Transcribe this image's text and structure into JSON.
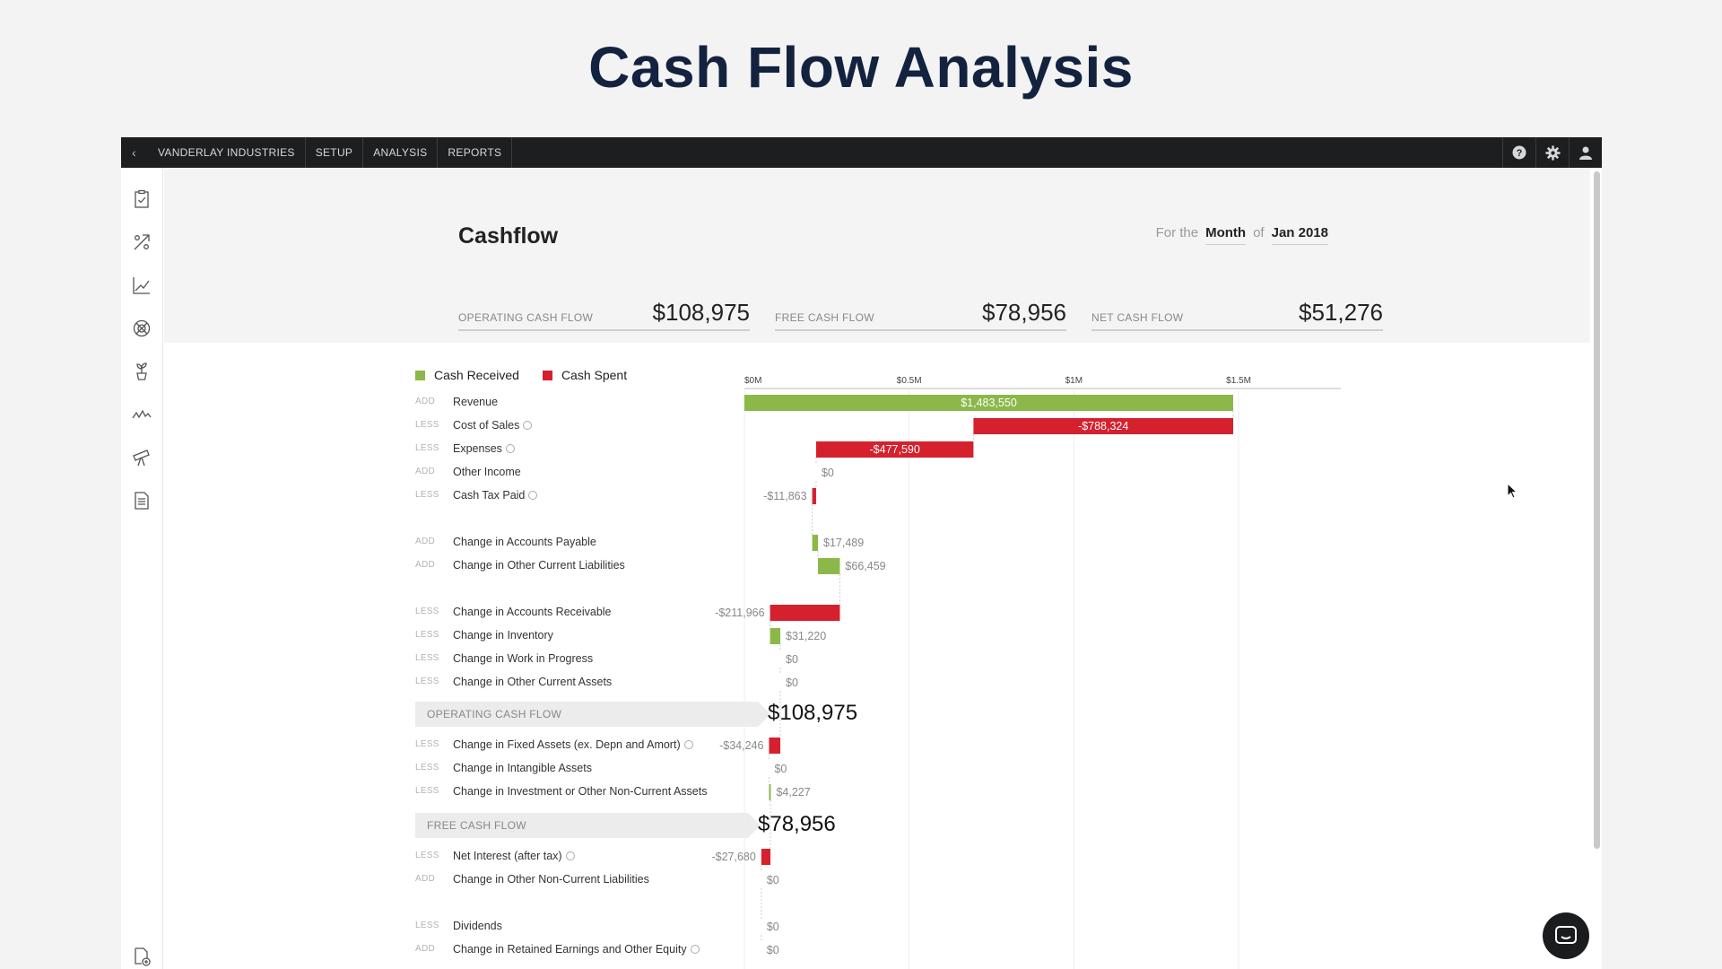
{
  "slide": {
    "title": "Cash Flow Analysis"
  },
  "topbar": {
    "nav": [
      "VANDERLAY INDUSTRIES",
      "SETUP",
      "ANALYSIS",
      "REPORTS"
    ],
    "icons": [
      "help-icon",
      "gear-icon",
      "user-icon"
    ]
  },
  "sidebar": {
    "icons": [
      "checklist-icon",
      "percent-tools-icon",
      "line-chart-icon",
      "globe-target-icon",
      "plant-icon",
      "wave-icon",
      "telescope-icon",
      "document-icon",
      "add-document-icon"
    ]
  },
  "page": {
    "title": "Cashflow",
    "period": {
      "prefix": "For the",
      "unit": "Month",
      "of": "of",
      "date": "Jan 2018"
    }
  },
  "kpis": [
    {
      "label": "OPERATING CASH FLOW",
      "value": "$108,975"
    },
    {
      "label": "FREE CASH FLOW",
      "value": "$78,956"
    },
    {
      "label": "NET CASH FLOW",
      "value": "$51,276"
    }
  ],
  "legend": [
    {
      "name": "Cash Received",
      "color": "#8bb848"
    },
    {
      "name": "Cash Spent",
      "color": "#d5202e"
    }
  ],
  "colors": {
    "received": "#8bb848",
    "spent": "#d5202e"
  },
  "chart_data": {
    "type": "bar",
    "subtype": "waterfall",
    "x_ticks": [
      "$0M",
      "$0.5M",
      "$1M",
      "$1.5M"
    ],
    "x_tick_values": [
      0,
      500000,
      1000000,
      1500000
    ],
    "rows": [
      {
        "op": "ADD",
        "label": "Revenue",
        "value": 1483550,
        "display": "$1,483,550",
        "info": false,
        "start": 0
      },
      {
        "op": "LESS",
        "label": "Cost of Sales",
        "value": -788324,
        "display": "-$788,324",
        "info": true,
        "start": 1483550
      },
      {
        "op": "LESS",
        "label": "Expenses",
        "value": -477590,
        "display": "-$477,590",
        "info": true,
        "start": 695226
      },
      {
        "op": "ADD",
        "label": "Other Income",
        "value": 0,
        "display": "$0",
        "info": false,
        "start": 217636
      },
      {
        "op": "LESS",
        "label": "Cash Tax Paid",
        "value": -11863,
        "display": "-$11,863",
        "info": true,
        "start": 217636
      },
      {
        "op": "ADD",
        "label": "Change in Accounts Payable",
        "value": 17489,
        "display": "$17,489",
        "info": false,
        "start": 205773
      },
      {
        "op": "ADD",
        "label": "Change in Other Current Liabilities",
        "value": 66459,
        "display": "$66,459",
        "info": false,
        "start": 223262
      },
      {
        "op": "LESS",
        "label": "Change in Accounts Receivable",
        "value": -211966,
        "display": "-$211,966",
        "info": false,
        "start": 289721
      },
      {
        "op": "LESS",
        "label": "Change in Inventory",
        "value": 31220,
        "display": "$31,220",
        "info": false,
        "start": 77755
      },
      {
        "op": "LESS",
        "label": "Change in Work in Progress",
        "value": 0,
        "display": "$0",
        "info": false,
        "start": 108975
      },
      {
        "op": "LESS",
        "label": "Change in Other Current Assets",
        "value": 0,
        "display": "$0",
        "info": false,
        "start": 108975
      },
      {
        "op": "LESS",
        "label": "Change in Fixed Assets (ex. Depn and Amort)",
        "value": -34246,
        "display": "-$34,246",
        "info": true,
        "start": 108975
      },
      {
        "op": "LESS",
        "label": "Change in Intangible Assets",
        "value": 0,
        "display": "$0",
        "info": false,
        "start": 74729
      },
      {
        "op": "LESS",
        "label": "Change in Investment or Other Non-Current Assets",
        "value": 4227,
        "display": "$4,227",
        "info": false,
        "start": 74729
      },
      {
        "op": "LESS",
        "label": "Net Interest (after tax)",
        "value": -27680,
        "display": "-$27,680",
        "info": true,
        "start": 78956
      },
      {
        "op": "ADD",
        "label": "Change in Other Non-Current Liabilities",
        "value": 0,
        "display": "$0",
        "info": false,
        "start": 51276
      },
      {
        "op": "LESS",
        "label": "Dividends",
        "value": 0,
        "display": "$0",
        "info": false,
        "start": 51276
      },
      {
        "op": "ADD",
        "label": "Change in Retained Earnings and Other Equity",
        "value": 0,
        "display": "$0",
        "info": true,
        "start": 51276
      }
    ],
    "subtotals": [
      {
        "label": "OPERATING CASH FLOW",
        "value": "$108,975",
        "amount": 108975
      },
      {
        "label": "FREE CASH FLOW",
        "value": "$78,956",
        "amount": 78956
      }
    ]
  }
}
